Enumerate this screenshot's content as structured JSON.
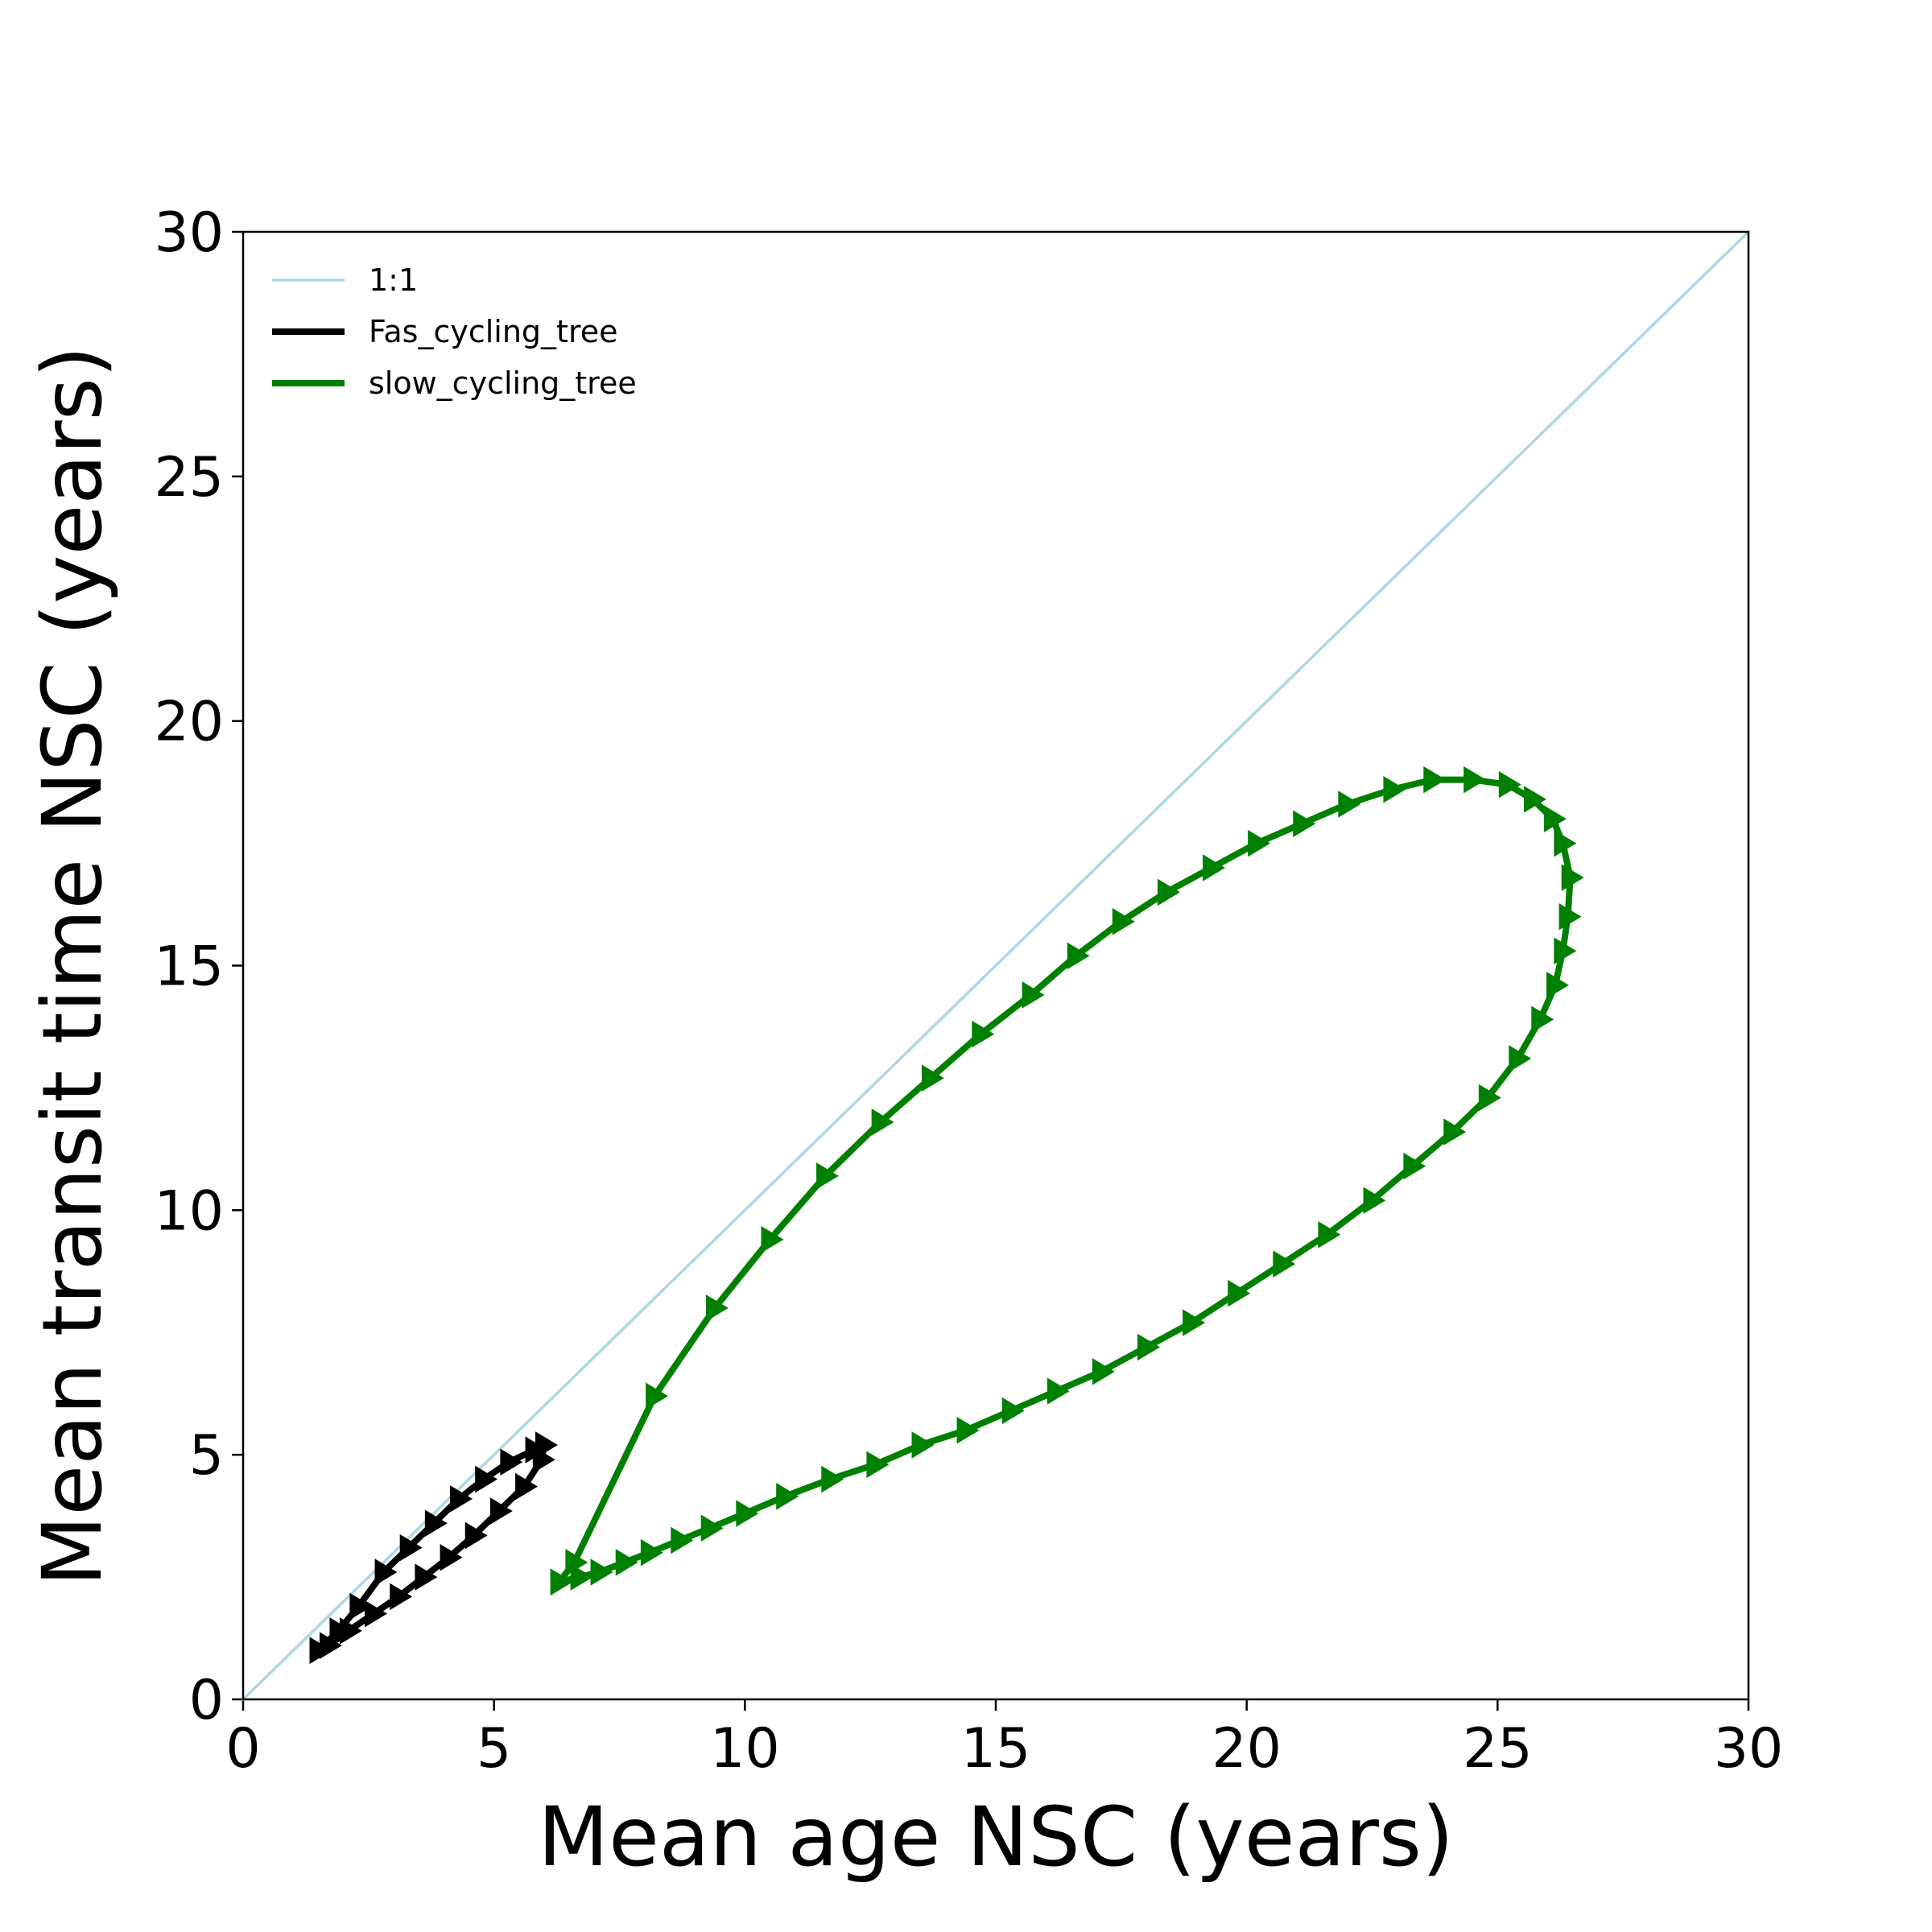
{
  "chart_data": {
    "type": "line",
    "title": "",
    "xlabel": "Mean age NSC (years)",
    "ylabel": "Mean transit time NSC (years)",
    "xlim": [
      0,
      30
    ],
    "ylim": [
      0,
      30
    ],
    "xticks": [
      "0",
      "5",
      "10",
      "15",
      "20",
      "25",
      "30"
    ],
    "yticks": [
      "0",
      "5",
      "10",
      "15",
      "20",
      "25",
      "30"
    ],
    "grid": false,
    "legend_position": "upper-left",
    "series": [
      {
        "name": "1:1",
        "color": "#add8e6",
        "marker": "none",
        "points": [
          [
            0,
            0
          ],
          [
            30,
            30
          ]
        ]
      },
      {
        "name": "Fas_cycling_tree",
        "color": "#000000",
        "marker": "triangle-right",
        "points": [
          [
            1.5,
            1.0
          ],
          [
            1.9,
            1.4
          ],
          [
            2.3,
            1.9
          ],
          [
            2.8,
            2.6
          ],
          [
            3.3,
            3.1
          ],
          [
            3.8,
            3.6
          ],
          [
            4.3,
            4.1
          ],
          [
            4.8,
            4.5
          ],
          [
            5.3,
            4.85
          ],
          [
            5.8,
            5.1
          ],
          [
            6.0,
            5.2
          ],
          [
            5.95,
            4.9
          ],
          [
            5.6,
            4.35
          ],
          [
            5.1,
            3.85
          ],
          [
            4.6,
            3.35
          ],
          [
            4.1,
            2.9
          ],
          [
            3.6,
            2.5
          ],
          [
            3.1,
            2.1
          ],
          [
            2.6,
            1.75
          ],
          [
            2.1,
            1.4
          ],
          [
            1.7,
            1.1
          ],
          [
            1.5,
            1.0
          ]
        ]
      },
      {
        "name": "slow_cycling_tree",
        "color": "#008000",
        "marker": "triangle-right",
        "points": [
          [
            6.3,
            2.4
          ],
          [
            6.6,
            2.8
          ],
          [
            8.2,
            6.2
          ],
          [
            9.4,
            8.0
          ],
          [
            10.5,
            9.4
          ],
          [
            11.6,
            10.7
          ],
          [
            12.7,
            11.8
          ],
          [
            13.7,
            12.7
          ],
          [
            14.7,
            13.6
          ],
          [
            15.7,
            14.4
          ],
          [
            16.6,
            15.2
          ],
          [
            17.5,
            15.9
          ],
          [
            18.4,
            16.5
          ],
          [
            19.3,
            17.0
          ],
          [
            20.2,
            17.5
          ],
          [
            21.1,
            17.9
          ],
          [
            22.0,
            18.3
          ],
          [
            22.9,
            18.6
          ],
          [
            23.7,
            18.8
          ],
          [
            24.5,
            18.8
          ],
          [
            25.2,
            18.7
          ],
          [
            25.7,
            18.4
          ],
          [
            26.1,
            18.0
          ],
          [
            26.3,
            17.5
          ],
          [
            26.45,
            16.8
          ],
          [
            26.4,
            16.0
          ],
          [
            26.3,
            15.3
          ],
          [
            26.15,
            14.6
          ],
          [
            25.85,
            13.9
          ],
          [
            25.4,
            13.1
          ],
          [
            24.8,
            12.3
          ],
          [
            24.1,
            11.6
          ],
          [
            23.3,
            10.9
          ],
          [
            22.5,
            10.2
          ],
          [
            21.6,
            9.5
          ],
          [
            20.7,
            8.9
          ],
          [
            19.8,
            8.3
          ],
          [
            18.9,
            7.7
          ],
          [
            18.0,
            7.2
          ],
          [
            17.1,
            6.7
          ],
          [
            16.2,
            6.3
          ],
          [
            15.3,
            5.9
          ],
          [
            14.4,
            5.5
          ],
          [
            13.5,
            5.2
          ],
          [
            12.6,
            4.8
          ],
          [
            11.7,
            4.5
          ],
          [
            10.8,
            4.15
          ],
          [
            10.0,
            3.8
          ],
          [
            9.3,
            3.5
          ],
          [
            8.7,
            3.25
          ],
          [
            8.1,
            3.0
          ],
          [
            7.6,
            2.8
          ],
          [
            7.1,
            2.6
          ],
          [
            6.7,
            2.5
          ],
          [
            6.3,
            2.4
          ]
        ]
      }
    ]
  }
}
